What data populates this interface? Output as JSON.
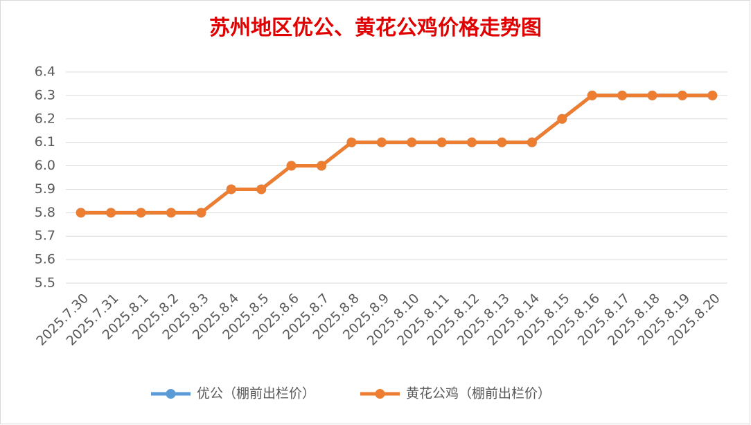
{
  "chart_data": {
    "type": "line",
    "title": "苏州地区优公、黄花公鸡价格走势图",
    "categories": [
      "2025.7.30",
      "2025.7.31",
      "2025.8.1",
      "2025.8.2",
      "2025.8.3",
      "2025.8.4",
      "2025.8.5",
      "2025.8.6",
      "2025.8.7",
      "2025.8.8",
      "2025.8.9",
      "2025.8.10",
      "2025.8.11",
      "2025.8.12",
      "2025.8.13",
      "2025.8.14",
      "2025.8.15",
      "2025.8.16",
      "2025.8.17",
      "2025.8.18",
      "2025.8.19",
      "2025.8.20"
    ],
    "series": [
      {
        "name": "优公（棚前出栏价）",
        "color": "#5b9bd5",
        "values": [
          5.8,
          5.8,
          5.8,
          5.8,
          5.8,
          5.9,
          5.9,
          6.0,
          6.0,
          6.1,
          6.1,
          6.1,
          6.1,
          6.1,
          6.1,
          6.1,
          6.2,
          6.3,
          6.3,
          6.3,
          6.3,
          6.3
        ]
      },
      {
        "name": "黄花公鸡（棚前出栏价）",
        "color": "#ed7d31",
        "values": [
          5.8,
          5.8,
          5.8,
          5.8,
          5.8,
          5.9,
          5.9,
          6.0,
          6.0,
          6.1,
          6.1,
          6.1,
          6.1,
          6.1,
          6.1,
          6.1,
          6.2,
          6.3,
          6.3,
          6.3,
          6.3,
          6.3
        ]
      }
    ],
    "ylim": [
      5.5,
      6.4
    ],
    "yticks": [
      5.5,
      5.6,
      5.7,
      5.8,
      5.9,
      {
        "value": 6,
        "label": "6.0"
      },
      6.1,
      6.2,
      6.3,
      6.4
    ],
    "grid": true,
    "legend": "bottom"
  }
}
